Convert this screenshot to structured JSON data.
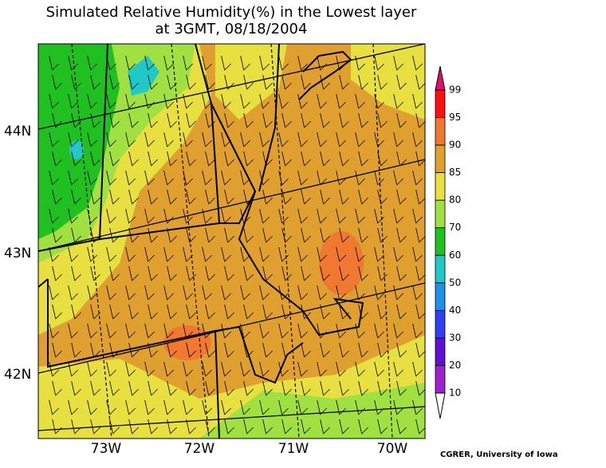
{
  "title": {
    "line1": "Simulated Relative Humidity(%) in the Lowest layer",
    "line2": "at 3GMT, 08/18/2004"
  },
  "map": {
    "lat_labels": [
      "44N",
      "43N",
      "42N"
    ],
    "lon_labels": [
      "73W",
      "72W",
      "71W",
      "70W"
    ]
  },
  "colorbar": {
    "labels": [
      "99",
      "95",
      "90",
      "85",
      "80",
      "70",
      "60",
      "50",
      "40",
      "30",
      "20",
      "10"
    ],
    "colors": [
      "#e0106a",
      "#ff1010",
      "#f07830",
      "#e0a030",
      "#e8e040",
      "#a0e040",
      "#20c020",
      "#20c8c8",
      "#2090e8",
      "#3040f0",
      "#6010d0",
      "#a020d0",
      "#ffffff"
    ]
  },
  "credit": "CGRER, University of Iowa"
}
